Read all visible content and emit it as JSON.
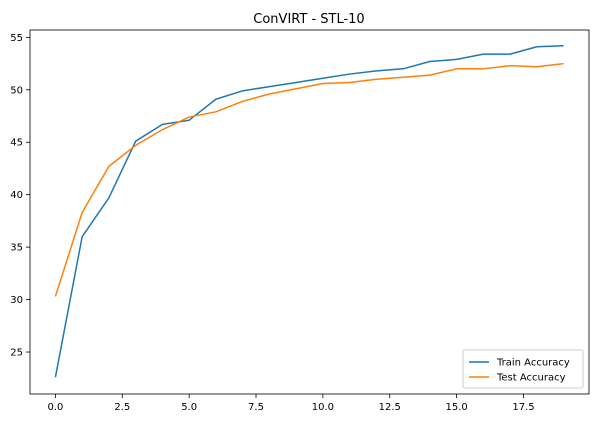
{
  "chart_data": {
    "type": "line",
    "title": "ConVIRT - STL-10",
    "xlabel": "",
    "ylabel": "",
    "xlim": [
      -0.95,
      19.95
    ],
    "ylim": [
      21.0,
      55.7
    ],
    "x_ticks": [
      0.0,
      2.5,
      5.0,
      7.5,
      10.0,
      12.5,
      15.0,
      17.5
    ],
    "x_tick_labels": [
      "0.0",
      "2.5",
      "5.0",
      "7.5",
      "10.0",
      "12.5",
      "15.0",
      "17.5"
    ],
    "y_ticks": [
      25,
      30,
      35,
      40,
      45,
      50,
      55
    ],
    "y_tick_labels": [
      "25",
      "30",
      "35",
      "40",
      "45",
      "50",
      "55"
    ],
    "grid": false,
    "legend_position": "lower-right",
    "x": [
      0,
      1,
      2,
      3,
      4,
      5,
      6,
      7,
      8,
      9,
      10,
      11,
      12,
      13,
      14,
      15,
      16,
      17,
      18,
      19
    ],
    "series": [
      {
        "name": "Train Accuracy",
        "color": "#1f77b4",
        "values": [
          22.6,
          36.0,
          39.7,
          45.1,
          46.7,
          47.1,
          49.1,
          49.9,
          50.3,
          50.7,
          51.1,
          51.5,
          51.8,
          52.0,
          52.7,
          52.9,
          53.4,
          53.4,
          54.1,
          54.2
        ]
      },
      {
        "name": "Test Accuracy",
        "color": "#ff7f0e",
        "values": [
          30.3,
          38.3,
          42.7,
          44.7,
          46.2,
          47.4,
          47.9,
          48.9,
          49.6,
          50.1,
          50.6,
          50.7,
          51.0,
          51.2,
          51.4,
          52.0,
          52.0,
          52.3,
          52.2,
          52.5
        ]
      }
    ]
  }
}
